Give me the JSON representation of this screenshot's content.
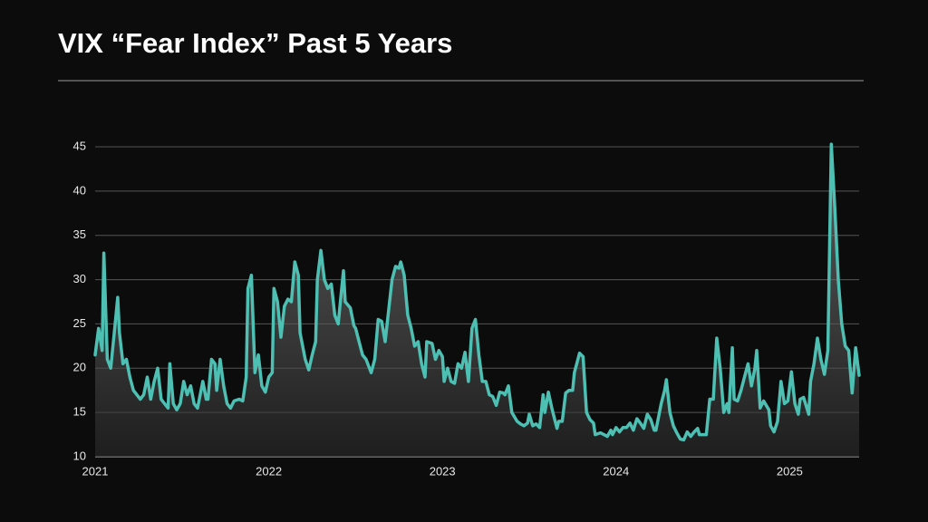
{
  "chart_data": {
    "type": "line",
    "title": "VIX “Fear Index” Past 5 Years",
    "color": "#4dbfb3",
    "grid": true,
    "xlim": [
      2021,
      2025.4
    ],
    "xticks": [
      2021,
      2022,
      2023,
      2024,
      2025
    ],
    "ylim": [
      10,
      45
    ],
    "yticks": [
      10,
      15,
      20,
      25,
      30,
      35,
      40,
      45
    ],
    "x": [
      2021.0,
      2021.02,
      2021.04,
      2021.05,
      2021.07,
      2021.09,
      2021.11,
      2021.13,
      2021.14,
      2021.16,
      2021.18,
      2021.2,
      2021.22,
      2021.26,
      2021.28,
      2021.3,
      2021.32,
      2021.34,
      2021.36,
      2021.38,
      2021.4,
      2021.42,
      2021.43,
      2021.45,
      2021.47,
      2021.49,
      2021.51,
      2021.53,
      2021.55,
      2021.57,
      2021.59,
      2021.62,
      2021.64,
      2021.65,
      2021.67,
      2021.69,
      2021.7,
      2021.72,
      2021.74,
      2021.76,
      2021.78,
      2021.8,
      2021.83,
      2021.85,
      2021.87,
      2021.88,
      2021.9,
      2021.92,
      2021.94,
      2021.96,
      2021.98,
      2022.0,
      2022.02,
      2022.03,
      2022.05,
      2022.07,
      2022.09,
      2022.11,
      2022.13,
      2022.15,
      2022.17,
      2022.18,
      2022.21,
      2022.23,
      2022.25,
      2022.27,
      2022.28,
      2022.3,
      2022.32,
      2022.34,
      2022.36,
      2022.38,
      2022.4,
      2022.41,
      2022.43,
      2022.44,
      2022.47,
      2022.49,
      2022.5,
      2022.52,
      2022.54,
      2022.56,
      2022.59,
      2022.61,
      2022.63,
      2022.65,
      2022.67,
      2022.69,
      2022.71,
      2022.73,
      2022.75,
      2022.76,
      2022.78,
      2022.8,
      2022.82,
      2022.84,
      2022.86,
      2022.88,
      2022.9,
      2022.91,
      2022.94,
      2022.96,
      2022.98,
      2023.0,
      2023.01,
      2023.03,
      2023.05,
      2023.07,
      2023.09,
      2023.11,
      2023.13,
      2023.15,
      2023.17,
      2023.19,
      2023.21,
      2023.23,
      2023.25,
      2023.27,
      2023.29,
      2023.31,
      2023.33,
      2023.35,
      2023.36,
      2023.38,
      2023.4,
      2023.43,
      2023.45,
      2023.47,
      2023.49,
      2023.5,
      2023.52,
      2023.54,
      2023.56,
      2023.58,
      2023.59,
      2023.61,
      2023.63,
      2023.66,
      2023.67,
      2023.69,
      2023.71,
      2023.73,
      2023.75,
      2023.76,
      2023.79,
      2023.81,
      2023.83,
      2023.85,
      2023.87,
      2023.88,
      2023.91,
      2023.93,
      2023.95,
      2023.97,
      2023.98,
      2024.0,
      2024.02,
      2024.04,
      2024.06,
      2024.08,
      2024.1,
      2024.12,
      2024.14,
      2024.16,
      2024.18,
      2024.2,
      2024.22,
      2024.23,
      2024.26,
      2024.28,
      2024.29,
      2024.31,
      2024.33,
      2024.35,
      2024.37,
      2024.39,
      2024.41,
      2024.43,
      2024.45,
      2024.47,
      2024.48,
      2024.51,
      2024.52,
      2024.54,
      2024.56,
      2024.58,
      2024.6,
      2024.62,
      2024.64,
      2024.65,
      2024.67,
      2024.68,
      2024.7,
      2024.72,
      2024.74,
      2024.76,
      2024.78,
      2024.8,
      2024.81,
      2024.83,
      2024.85,
      2024.88,
      2024.89,
      2024.91,
      2024.93,
      2024.95,
      2024.97,
      2024.99,
      2025.01,
      2025.03,
      2025.05,
      2025.06,
      2025.08,
      2025.11,
      2025.12,
      2025.14,
      2025.16,
      2025.18,
      2025.2,
      2025.22,
      2025.24,
      2025.26,
      2025.28,
      2025.3,
      2025.32,
      2025.34,
      2025.36,
      2025.38,
      2025.4
    ],
    "values": [
      21.5,
      24.5,
      22,
      33,
      21,
      20,
      24,
      28,
      24,
      20.5,
      21,
      19,
      17.5,
      16.5,
      17,
      19,
      16.5,
      18.5,
      20,
      16.5,
      16,
      15.5,
      20.5,
      16,
      15.3,
      16,
      18.5,
      17,
      18,
      16,
      15.5,
      18.5,
      16.5,
      16.5,
      21,
      20.5,
      17.5,
      21,
      18,
      16,
      15.5,
      16.3,
      16.5,
      16.3,
      19,
      29,
      30.5,
      19.5,
      21.5,
      18,
      17.3,
      19,
      19.5,
      29,
      27.5,
      23.5,
      27,
      27.8,
      27.5,
      32,
      30.5,
      24,
      21,
      19.8,
      21.5,
      23,
      30,
      33.3,
      30,
      29,
      29.5,
      26,
      25,
      27,
      31,
      27.5,
      26.8,
      24.8,
      24.5,
      23,
      21.5,
      21,
      19.5,
      21,
      25.5,
      25.3,
      23,
      26.5,
      30,
      31.5,
      31.3,
      32,
      30.5,
      26,
      24.5,
      22.5,
      23,
      20.5,
      19,
      23,
      22.8,
      21,
      22,
      21.3,
      18.5,
      20,
      18.5,
      18.3,
      20.5,
      20,
      21.8,
      18.5,
      24.5,
      25.5,
      21.5,
      18.5,
      18.5,
      17,
      16.8,
      15.8,
      17.3,
      17.2,
      17,
      18,
      15,
      14,
      13.7,
      13.5,
      13.8,
      14.8,
      13.5,
      13.7,
      13.3,
      17,
      15,
      17.3,
      15.5,
      13.2,
      14,
      14,
      17.2,
      17.5,
      17.5,
      19.5,
      21.7,
      21.3,
      15,
      14.2,
      13.8,
      12.5,
      12.7,
      12.5,
      12.3,
      13,
      12.5,
      13.3,
      12.8,
      13.3,
      13.3,
      13.8,
      13,
      14.3,
      13.8,
      13.2,
      14.8,
      14.2,
      13,
      13,
      16,
      17.5,
      18.7,
      15,
      13.5,
      12.7,
      12,
      11.9,
      12.8,
      12.3,
      12.8,
      13.2,
      12.5,
      12.5,
      12.5,
      16.5,
      16.5,
      23.4,
      20,
      15,
      16,
      15,
      22.3,
      16.5,
      16.3,
      17.5,
      19,
      20.5,
      18,
      20,
      22,
      15.5,
      16.3,
      15.3,
      13.5,
      12.8,
      14,
      18.5,
      16,
      16.3,
      19.6,
      16,
      14.8,
      16.5,
      16.7,
      14.8,
      18.5,
      20.5,
      23.4,
      21,
      19.3,
      22,
      45.3,
      38,
      30,
      25,
      22.5,
      22,
      17.2,
      22.3,
      19.2
    ]
  }
}
